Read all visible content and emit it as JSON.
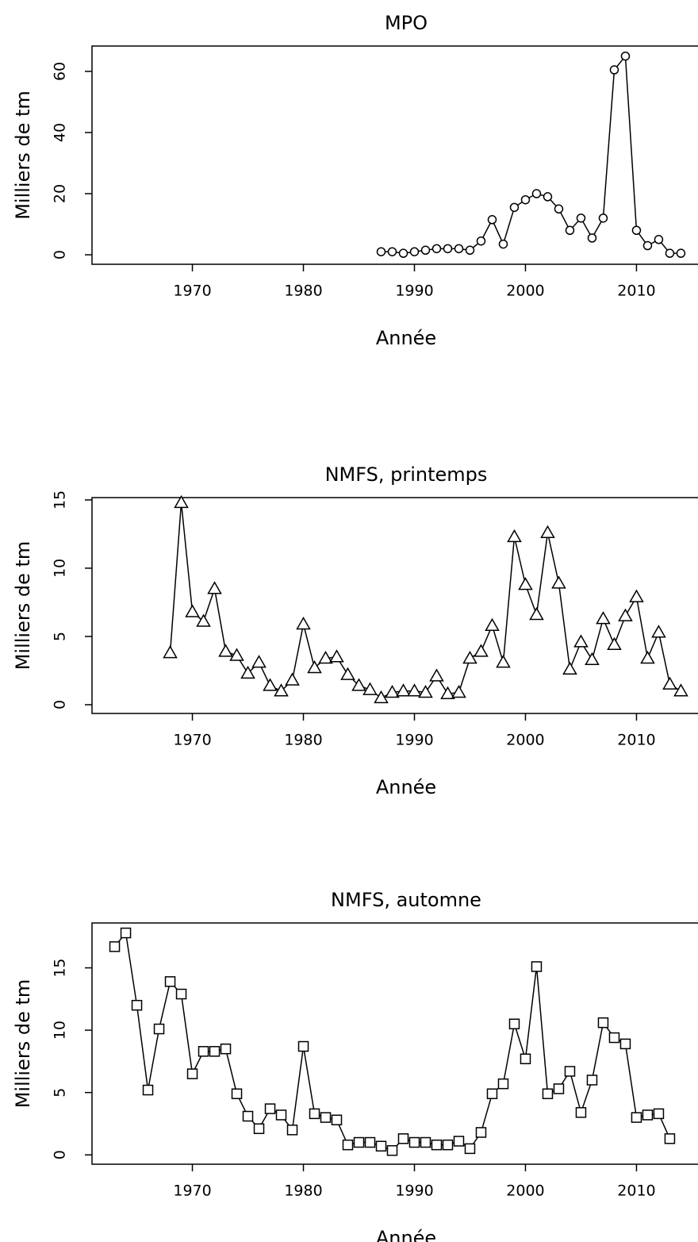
{
  "chart_data": [
    {
      "type": "line",
      "title": "MPO",
      "xlabel": "Année",
      "ylabel": "Milliers de tm",
      "marker": "circle",
      "color": "#000000",
      "x": [
        1987,
        1988,
        1989,
        1990,
        1991,
        1992,
        1993,
        1994,
        1995,
        1996,
        1997,
        1998,
        1999,
        2000,
        2001,
        2002,
        2003,
        2004,
        2005,
        2006,
        2007,
        2008,
        2009,
        2010,
        2011,
        2012,
        2013,
        2014
      ],
      "values": [
        1,
        1,
        0.5,
        1,
        1.5,
        2,
        2,
        2,
        1.5,
        4.5,
        11.5,
        3.5,
        15.5,
        18,
        20,
        19,
        15,
        8,
        12,
        5.5,
        12,
        60.5,
        65,
        8,
        3,
        5,
        0.5,
        0.5
      ],
      "xlim": [
        1960.96,
        2016.04
      ],
      "ylim": [
        -3.1,
        68.3
      ],
      "xticks": [
        1970,
        1980,
        1990,
        2000,
        2010
      ],
      "yticks": [
        0,
        20,
        40,
        60
      ]
    },
    {
      "type": "line",
      "title": "NMFS, printemps",
      "xlabel": "Année",
      "ylabel": "Milliers de tm",
      "marker": "triangle",
      "color": "#000000",
      "x": [
        1968,
        1969,
        1970,
        1971,
        1972,
        1973,
        1974,
        1975,
        1976,
        1977,
        1978,
        1979,
        1980,
        1981,
        1982,
        1983,
        1984,
        1985,
        1986,
        1987,
        1988,
        1989,
        1990,
        1991,
        1992,
        1993,
        1994,
        1995,
        1996,
        1997,
        1998,
        1999,
        2000,
        2001,
        2002,
        2003,
        2004,
        2005,
        2006,
        2007,
        2008,
        2009,
        2010,
        2011,
        2012,
        2013,
        2014
      ],
      "values": [
        3.8,
        14.8,
        6.8,
        6.1,
        8.5,
        3.9,
        3.6,
        2.3,
        3.1,
        1.4,
        1.0,
        1.8,
        5.9,
        2.7,
        3.4,
        3.5,
        2.2,
        1.4,
        1.1,
        0.5,
        0.9,
        1.0,
        1.0,
        0.9,
        2.1,
        0.8,
        0.9,
        3.4,
        3.9,
        5.8,
        3.1,
        12.3,
        8.8,
        6.6,
        12.6,
        8.9,
        2.6,
        4.6,
        3.3,
        6.3,
        4.4,
        6.5,
        7.9,
        3.4,
        5.3,
        1.5,
        1.0
      ],
      "xlim": [
        1960.96,
        2016.04
      ],
      "ylim": [
        -0.64,
        15.17
      ],
      "xticks": [
        1970,
        1980,
        1990,
        2000,
        2010
      ],
      "yticks": [
        0,
        5,
        10,
        15
      ]
    },
    {
      "type": "line",
      "title": "NMFS, automne",
      "xlabel": "Année",
      "ylabel": "Milliers de tm",
      "marker": "square",
      "color": "#000000",
      "x": [
        1963,
        1964,
        1965,
        1966,
        1967,
        1968,
        1969,
        1970,
        1971,
        1972,
        1973,
        1974,
        1975,
        1976,
        1977,
        1978,
        1979,
        1980,
        1981,
        1982,
        1983,
        1984,
        1985,
        1986,
        1987,
        1988,
        1989,
        1990,
        1991,
        1992,
        1993,
        1994,
        1995,
        1996,
        1997,
        1998,
        1999,
        2000,
        2001,
        2002,
        2003,
        2004,
        2005,
        2006,
        2007,
        2008,
        2009,
        2010,
        2011,
        2012,
        2013
      ],
      "values": [
        16.7,
        17.8,
        12.0,
        5.2,
        10.1,
        13.9,
        12.9,
        6.5,
        8.3,
        8.3,
        8.5,
        4.9,
        3.1,
        2.1,
        3.7,
        3.2,
        2.0,
        8.7,
        3.3,
        3.0,
        2.8,
        0.8,
        1.0,
        1.0,
        0.7,
        0.35,
        1.3,
        1.0,
        1.0,
        0.8,
        0.8,
        1.1,
        0.5,
        1.8,
        4.9,
        5.7,
        10.5,
        7.7,
        15.1,
        4.9,
        5.3,
        6.7,
        3.4,
        6.0,
        10.6,
        9.4,
        8.9,
        3.0,
        3.2,
        3.3,
        1.3
      ],
      "xlim": [
        1960.96,
        2016.04
      ],
      "ylim": [
        -0.75,
        18.6
      ],
      "xticks": [
        1970,
        1980,
        1990,
        2000,
        2010
      ],
      "yticks": [
        0,
        5,
        10,
        15
      ]
    }
  ]
}
